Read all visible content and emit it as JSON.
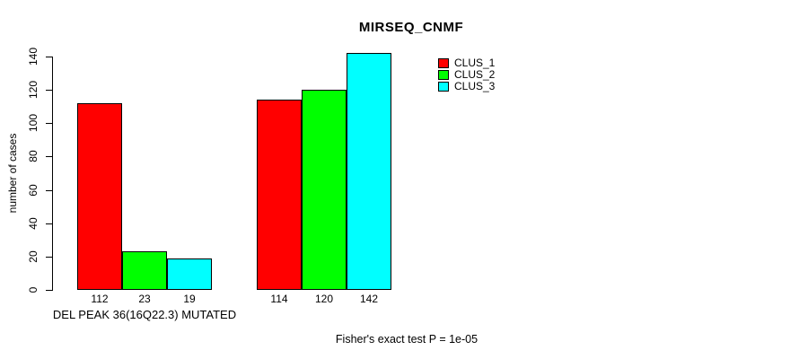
{
  "header": {
    "title": "MIRSEQ_CNMF"
  },
  "y_axis": {
    "label": "number of cases"
  },
  "x_axis": {
    "group_label": "DEL PEAK 36(16Q22.3) MUTATED"
  },
  "legend": {
    "items": [
      {
        "label": "CLUS_1",
        "color": "#FF0000"
      },
      {
        "label": "CLUS_2",
        "color": "#00FF00"
      },
      {
        "label": "CLUS_3",
        "color": "#00FFFF"
      }
    ]
  },
  "footer": {
    "stat_text": "Fisher's exact test P = 1e-05"
  },
  "chart_data": {
    "type": "bar",
    "title": "MIRSEQ_CNMF",
    "xlabel": "",
    "ylabel": "number of cases",
    "ylim": [
      0,
      140
    ],
    "yticks": [
      0,
      20,
      40,
      60,
      80,
      100,
      120,
      140
    ],
    "categories": [
      "DEL PEAK 36(16Q22.3) MUTATED",
      ""
    ],
    "series": [
      {
        "name": "CLUS_1",
        "color": "#FF0000",
        "values": [
          112,
          114
        ]
      },
      {
        "name": "CLUS_2",
        "color": "#00FF00",
        "values": [
          23,
          120
        ]
      },
      {
        "name": "CLUS_3",
        "color": "#00FFFF",
        "values": [
          19,
          142
        ]
      }
    ],
    "bar_value_labels": [
      [
        112,
        23,
        19
      ],
      [
        114,
        120,
        142
      ]
    ],
    "annotation": "Fisher's exact test P = 1e-05",
    "legend_position": "top-right",
    "grid": false,
    "bar_border_color": "#000000",
    "background": "#FFFFFF"
  }
}
